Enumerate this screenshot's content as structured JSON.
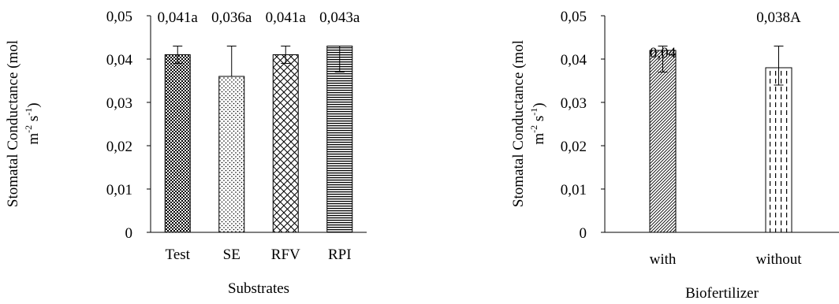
{
  "chart_data": [
    {
      "type": "bar",
      "title": "",
      "xlabel": "Substrates",
      "ylabel_main": "Stomatal Conductance (mol",
      "ylabel_unit": {
        "m": "m",
        "m_exp": "-2",
        "s": " s",
        "s_exp": "-1",
        "close": ")"
      },
      "ylim": [
        0,
        0.05
      ],
      "yticks": [
        0,
        0.01,
        0.02,
        0.03,
        0.04,
        0.05
      ],
      "ytick_labels": [
        "0",
        "0,01",
        "0,02",
        "0,03",
        "0,04",
        "0,05"
      ],
      "categories": [
        "Test",
        "SE",
        "RFV",
        "RPI"
      ],
      "values": [
        0.041,
        0.036,
        0.041,
        0.043
      ],
      "error_low": [
        0.002,
        0.0,
        0.002,
        0.006
      ],
      "error_high": [
        0.002,
        0.007,
        0.002,
        0.0
      ],
      "data_labels": [
        "0,041a",
        "0,036a",
        "0,041a",
        "0,043a"
      ],
      "patterns": [
        "pat-checker",
        "pat-dots",
        "pat-crosshatch",
        "pat-hlines"
      ],
      "grid": false,
      "legend": "none"
    },
    {
      "type": "bar",
      "title": "",
      "xlabel": "Biofertilizer",
      "ylabel_main": "Stomatal Conductance (mol",
      "ylabel_unit": {
        "m": "m",
        "m_exp": "-2",
        "s": " s",
        "s_exp": "-1",
        "close": ")"
      },
      "ylim": [
        0,
        0.05
      ],
      "yticks": [
        0,
        0.01,
        0.02,
        0.03,
        0.04,
        0.05
      ],
      "ytick_labels": [
        "0",
        "0,01",
        "0,02",
        "0,03",
        "0,04",
        "0,05"
      ],
      "categories": [
        "with",
        "without"
      ],
      "values": [
        0.042,
        0.038
      ],
      "error_low": [
        0.005,
        0.004
      ],
      "error_high": [
        0.001,
        0.005
      ],
      "data_labels": [
        "0,04",
        "0,038A"
      ],
      "patterns": [
        "pat-diag",
        "pat-vdash"
      ],
      "grid": false,
      "legend": "none"
    }
  ]
}
